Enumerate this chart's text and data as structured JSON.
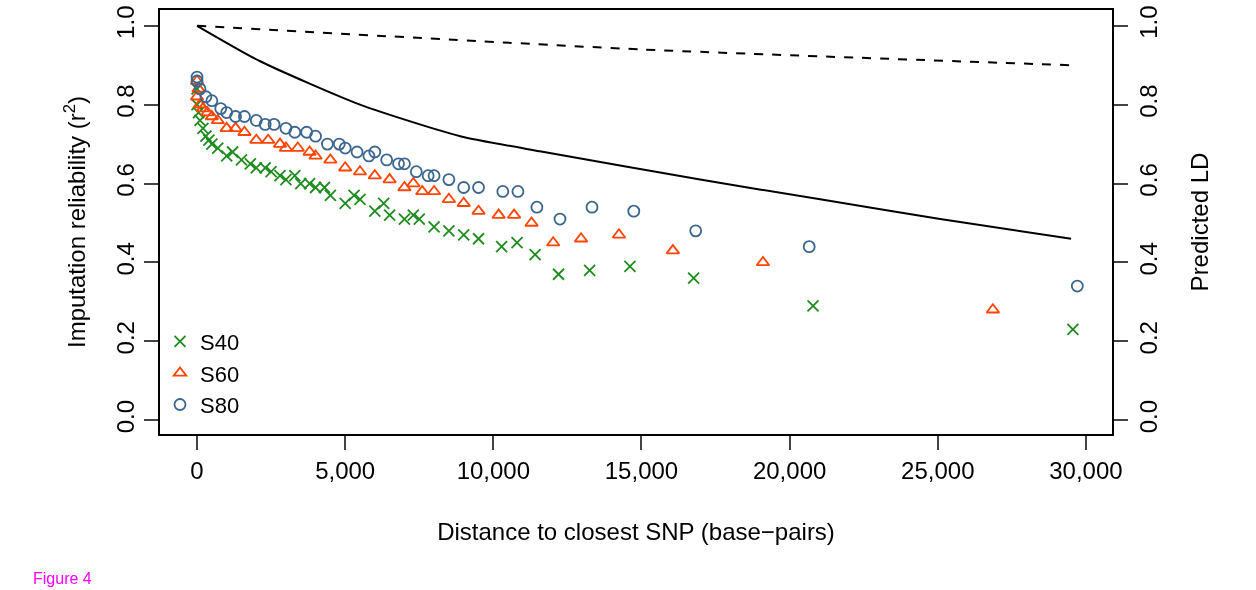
{
  "chart_data": {
    "type": "scatter",
    "xlabel": "Distance to closest SNP (base−pairs)",
    "ylabel": "Imputation reliability (r$^{2}$)",
    "y2label": "Predicted LD",
    "annotations": [
      "Figure 4"
    ],
    "xlim": [
      -1250,
      30880
    ],
    "xticks": [
      {
        "value": 0,
        "label": "0"
      },
      {
        "value": 5000,
        "label": "5,000"
      },
      {
        "value": 10000,
        "label": "10,000"
      },
      {
        "value": 15000,
        "label": "15,000"
      },
      {
        "value": 20000,
        "label": "20,000"
      },
      {
        "value": 25000,
        "label": "25,000"
      },
      {
        "value": 30000,
        "label": "30,000"
      }
    ],
    "ylim": [
      -0.035,
      1.04
    ],
    "yticks": [
      {
        "value": 0,
        "label": "0.0"
      },
      {
        "value": 0.2,
        "label": "0.2"
      },
      {
        "value": 0.4,
        "label": "0.4"
      },
      {
        "value": 0.6,
        "label": "0.6"
      },
      {
        "value": 0.8,
        "label": "0.8"
      },
      {
        "value": 1,
        "label": "1.0"
      }
    ],
    "y2lim": [
      -0.035,
      1.04
    ],
    "y2ticks": [
      {
        "value": 0,
        "label": "0.0"
      },
      {
        "value": 0.2,
        "label": "0.2"
      },
      {
        "value": 0.4,
        "label": "0.4"
      },
      {
        "value": 0.6,
        "label": "0.6"
      },
      {
        "value": 0.8,
        "label": "0.8"
      },
      {
        "value": 1,
        "label": "1.0"
      }
    ],
    "legend": "bottom left",
    "series": [
      {
        "name": "S40",
        "color": "#1e8c1e",
        "marker": "cross",
        "x": [
          0,
          0,
          50,
          100,
          200,
          300,
          400,
          500,
          700,
          1000,
          1200,
          1500,
          1800,
          2000,
          2300,
          2500,
          2800,
          3000,
          3300,
          3500,
          3800,
          4000,
          4300,
          4500,
          5000,
          5300,
          5500,
          6000,
          6300,
          6500,
          7000,
          7300,
          7500,
          8000,
          8500,
          9000,
          9500,
          10280,
          10800,
          11410,
          12200,
          13250,
          14610,
          16760,
          20790,
          29560
        ],
        "values": [
          0.84,
          0.8,
          0.78,
          0.76,
          0.74,
          0.72,
          0.71,
          0.7,
          0.69,
          0.67,
          0.68,
          0.66,
          0.65,
          0.64,
          0.64,
          0.63,
          0.62,
          0.61,
          0.62,
          0.6,
          0.6,
          0.59,
          0.59,
          0.57,
          0.55,
          0.57,
          0.56,
          0.53,
          0.55,
          0.52,
          0.51,
          0.52,
          0.51,
          0.49,
          0.48,
          0.47,
          0.46,
          0.44,
          0.45,
          0.42,
          0.37,
          0.38,
          0.39,
          0.36,
          0.29,
          0.23
        ]
      },
      {
        "name": "S60",
        "color": "#ff4500",
        "marker": "triangle",
        "x": [
          0,
          0,
          50,
          100,
          200,
          350,
          500,
          700,
          1000,
          1300,
          1600,
          2000,
          2400,
          2800,
          3000,
          3400,
          3800,
          4000,
          4500,
          5000,
          5500,
          6000,
          6500,
          7000,
          7300,
          7600,
          8000,
          8500,
          9000,
          9500,
          10180,
          10700,
          11290,
          12020,
          12960,
          14240,
          16060,
          19100,
          26860
        ],
        "values": [
          0.86,
          0.82,
          0.84,
          0.8,
          0.79,
          0.78,
          0.77,
          0.76,
          0.74,
          0.74,
          0.73,
          0.71,
          0.71,
          0.7,
          0.69,
          0.69,
          0.68,
          0.67,
          0.66,
          0.64,
          0.63,
          0.62,
          0.61,
          0.59,
          0.6,
          0.58,
          0.58,
          0.56,
          0.55,
          0.53,
          0.52,
          0.52,
          0.5,
          0.45,
          0.46,
          0.47,
          0.43,
          0.4,
          0.28
        ]
      },
      {
        "name": "S80",
        "color": "#3a6690",
        "marker": "circle",
        "x": [
          0,
          0,
          100,
          300,
          500,
          800,
          1000,
          1300,
          1600,
          2000,
          2300,
          2600,
          3000,
          3300,
          3700,
          4000,
          4400,
          4800,
          5000,
          5400,
          5800,
          6000,
          6400,
          6800,
          7000,
          7400,
          7800,
          8000,
          8500,
          9000,
          9500,
          10320,
          10830,
          11470,
          12250,
          13330,
          14740,
          16830,
          20660,
          29710
        ],
        "values": [
          0.87,
          0.86,
          0.84,
          0.82,
          0.81,
          0.79,
          0.78,
          0.77,
          0.77,
          0.76,
          0.75,
          0.75,
          0.74,
          0.73,
          0.73,
          0.72,
          0.7,
          0.7,
          0.69,
          0.68,
          0.67,
          0.68,
          0.66,
          0.65,
          0.65,
          0.63,
          0.62,
          0.62,
          0.61,
          0.59,
          0.59,
          0.58,
          0.58,
          0.54,
          0.51,
          0.54,
          0.53,
          0.48,
          0.44,
          0.34
        ]
      },
      {
        "type": "line",
        "axis": "y2",
        "color": "#000000",
        "line_style": "solid",
        "marker": "none",
        "x": [
          0,
          2130,
          5500,
          8880,
          11710,
          16980,
          21030,
          25080,
          29500
        ],
        "values": [
          1.0,
          0.91,
          0.8,
          0.72,
          0.68,
          0.61,
          0.56,
          0.51,
          0.46
        ]
      },
      {
        "type": "line",
        "axis": "y2",
        "color": "#000000",
        "line_style": "dashed",
        "marker": "none",
        "x": [
          0,
          15000,
          29500
        ],
        "values": [
          1.0,
          0.94,
          0.9
        ]
      }
    ]
  }
}
